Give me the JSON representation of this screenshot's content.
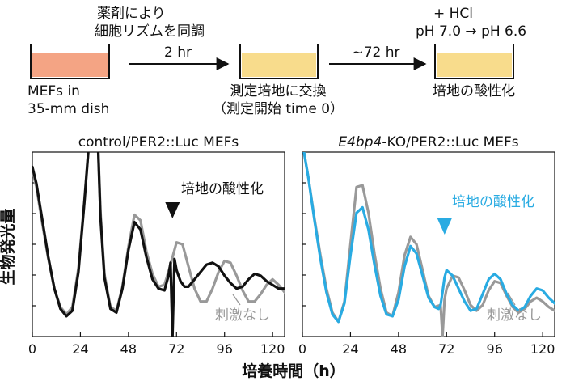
{
  "protocol": {
    "step1_note_line1": "薬剤により",
    "step1_note_line2": "細胞リズムを同調",
    "arrow1_label": "2 hr",
    "arrow2_label": "~72 hr",
    "step3_note_line1": "+ HCl",
    "step3_note_line2": "pH 7.0 → pH 6.6",
    "dish1_label_line1": "MEFs in",
    "dish1_label_line2": "35-mm dish",
    "dish2_label_line1": "測定培地に交換",
    "dish2_label_line2": "（測定開始 time 0）",
    "dish3_label": "培地の酸性化",
    "colors": {
      "dish1": "#f4a484",
      "dish2": "#f8dc8c",
      "dish3": "#f8dc8c"
    }
  },
  "chart_data": [
    {
      "type": "line",
      "title": "control/PER2::Luc MEFs",
      "xlabel": "培養時間（h）",
      "ylabel": "生物発光量",
      "xlim": [
        0,
        126
      ],
      "xticks": [
        0,
        24,
        48,
        72,
        96,
        120
      ],
      "ylim": [
        0,
        10
      ],
      "annotation": {
        "text": "培地の酸性化",
        "x": 70,
        "color": "#111111"
      },
      "series": [
        {
          "name": "",
          "color": "#111111",
          "x": [
            0,
            2,
            5,
            8,
            11,
            14,
            17,
            20,
            23,
            26,
            29,
            32,
            34,
            36,
            39,
            42,
            45,
            48,
            51,
            54,
            57,
            60,
            63,
            66,
            68,
            69,
            70,
            71,
            72,
            74,
            76,
            78,
            81,
            84,
            87,
            90,
            93,
            96,
            99,
            102,
            105,
            108,
            111,
            114,
            117,
            120,
            123,
            126
          ],
          "y": [
            9.2,
            8.3,
            6.3,
            4.3,
            2.6,
            1.5,
            1.1,
            1.4,
            3.5,
            7.3,
            11.5,
            13.0,
            6.5,
            3.2,
            1.5,
            1.3,
            2.6,
            4.7,
            6.2,
            5.8,
            4.3,
            3.1,
            2.6,
            2.5,
            3.3,
            4.0,
            0.0,
            4.2,
            3.6,
            3.0,
            2.7,
            2.7,
            3.1,
            3.5,
            3.9,
            4.0,
            3.8,
            3.3,
            2.9,
            2.6,
            2.7,
            3.1,
            3.4,
            3.3,
            3.0,
            2.8,
            2.6,
            2.6
          ]
        },
        {
          "name": "刺激なし",
          "color": "#999999",
          "x": [
            0,
            2,
            5,
            8,
            11,
            14,
            17,
            20,
            23,
            26,
            29,
            32,
            34,
            36,
            39,
            42,
            45,
            48,
            51,
            54,
            57,
            60,
            63,
            66,
            69,
            72,
            75,
            78,
            81,
            84,
            87,
            90,
            93,
            96,
            99,
            102,
            105,
            108,
            111,
            114,
            117,
            120,
            123,
            126
          ],
          "y": [
            9.0,
            8.1,
            6.1,
            4.2,
            2.6,
            1.6,
            1.2,
            1.6,
            3.7,
            7.4,
            11.5,
            13.0,
            6.8,
            3.4,
            1.6,
            1.4,
            2.7,
            4.9,
            6.6,
            6.3,
            4.6,
            3.4,
            2.7,
            2.8,
            3.9,
            5.1,
            5.0,
            3.8,
            2.6,
            1.9,
            1.9,
            2.6,
            3.5,
            4.1,
            4.0,
            3.3,
            2.5,
            1.9,
            1.9,
            2.3,
            2.8,
            3.1,
            2.8,
            2.4
          ]
        }
      ]
    },
    {
      "type": "line",
      "title": "E4bp4-KO/PER2::Luc MEFs",
      "title_italic_part": "E4bp4",
      "title_rest": "-KO/PER2::Luc MEFs",
      "xlim": [
        0,
        126
      ],
      "xticks": [
        0,
        24,
        48,
        72,
        96,
        120
      ],
      "ylim": [
        0,
        10
      ],
      "annotation": {
        "text": "培地の酸性化",
        "x": 71,
        "color": "#29abe2"
      },
      "series": [
        {
          "name": "",
          "color": "#29abe2",
          "x": [
            0,
            3,
            6,
            9,
            12,
            15,
            18,
            21,
            24,
            27,
            30,
            33,
            36,
            39,
            42,
            45,
            48,
            51,
            54,
            57,
            60,
            63,
            66,
            68,
            69,
            70,
            71,
            72,
            75,
            78,
            81,
            84,
            87,
            90,
            93,
            96,
            99,
            102,
            105,
            108,
            111,
            114,
            117,
            120,
            123,
            126
          ],
          "y": [
            10.5,
            8.6,
            6.3,
            4.2,
            2.4,
            1.2,
            0.8,
            1.8,
            4.4,
            6.7,
            7.0,
            5.8,
            3.9,
            2.2,
            1.2,
            1.1,
            2.0,
            3.8,
            4.9,
            4.5,
            3.3,
            2.1,
            1.6,
            1.5,
            1.7,
            2.4,
            3.2,
            3.6,
            3.3,
            2.6,
            1.9,
            1.4,
            1.5,
            2.3,
            3.1,
            3.4,
            3.1,
            2.3,
            1.7,
            1.4,
            1.6,
            2.2,
            2.6,
            2.5,
            2.1,
            1.8
          ]
        },
        {
          "name": "刺激なし",
          "color": "#999999",
          "x": [
            0,
            3,
            6,
            9,
            12,
            15,
            18,
            21,
            24,
            27,
            30,
            33,
            36,
            39,
            42,
            45,
            48,
            51,
            54,
            57,
            60,
            63,
            66,
            69,
            70,
            71,
            72,
            75,
            78,
            81,
            84,
            87,
            90,
            93,
            96,
            99,
            102,
            105,
            108,
            111,
            114,
            117,
            120,
            123,
            126
          ],
          "y": [
            10.5,
            8.6,
            6.4,
            4.4,
            2.6,
            1.3,
            0.8,
            1.9,
            5.0,
            8.1,
            8.2,
            6.7,
            4.5,
            2.6,
            1.3,
            1.1,
            2.4,
            4.4,
            5.4,
            5.0,
            3.6,
            2.2,
            1.6,
            1.7,
            0.0,
            2.0,
            2.6,
            3.3,
            3.2,
            2.5,
            1.7,
            1.4,
            1.7,
            2.5,
            3.0,
            2.9,
            2.2,
            1.6,
            1.3,
            1.5,
            1.9,
            2.1,
            1.9,
            1.6,
            1.4
          ]
        }
      ]
    }
  ]
}
